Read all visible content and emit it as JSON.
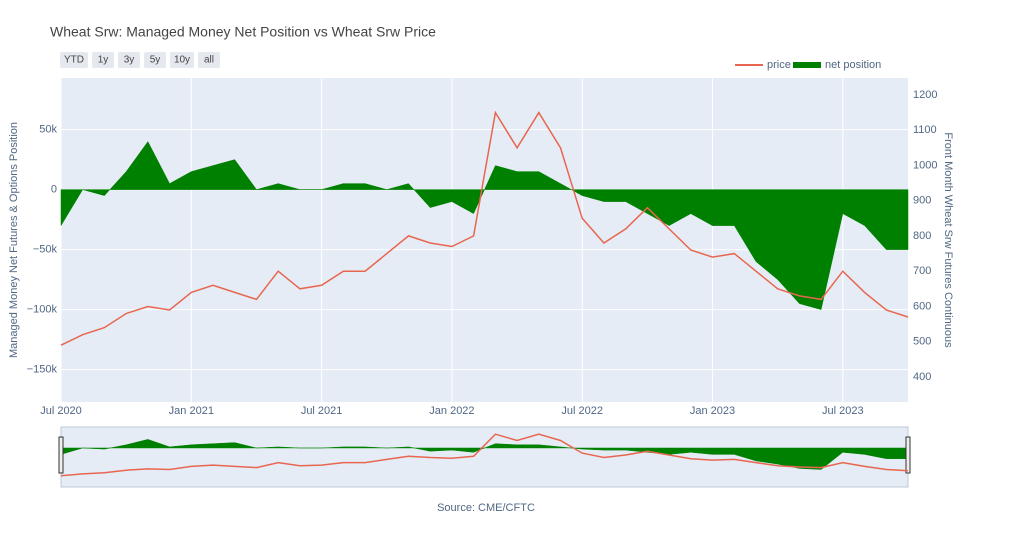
{
  "chart_data": {
    "type": "line-area",
    "title": "Wheat Srw: Managed Money Net Position vs Wheat Srw Price",
    "buttons": [
      "YTD",
      "1y",
      "3y",
      "5y",
      "10y",
      "all"
    ],
    "y_label": "Managed Money Net Futures & Options Position",
    "y2_label": "Front Month Wheat Srw Futures Continuous",
    "source": "Source: CME/CFTC",
    "legend": "top-right",
    "grid": true,
    "range_slider": true,
    "x": [
      "2020-07",
      "2020-08",
      "2020-09",
      "2020-10",
      "2020-11",
      "2020-12",
      "2021-01",
      "2021-02",
      "2021-03",
      "2021-04",
      "2021-05",
      "2021-06",
      "2021-07",
      "2021-08",
      "2021-09",
      "2021-10",
      "2021-11",
      "2021-12",
      "2022-01",
      "2022-02",
      "2022-03",
      "2022-04",
      "2022-05",
      "2022-06",
      "2022-07",
      "2022-08",
      "2022-09",
      "2022-10",
      "2022-11",
      "2022-12",
      "2023-01",
      "2023-02",
      "2023-03",
      "2023-04",
      "2023-05",
      "2023-06",
      "2023-07",
      "2023-08",
      "2023-09",
      "2023-10"
    ],
    "xlim": [
      "2020-07",
      "2023-10"
    ],
    "xticks": [
      {
        "value": "2020-07",
        "label": "Jul 2020"
      },
      {
        "value": "2021-01",
        "label": "Jan 2021"
      },
      {
        "value": "2021-07",
        "label": "Jul 2021"
      },
      {
        "value": "2022-01",
        "label": "Jan 2022"
      },
      {
        "value": "2022-07",
        "label": "Jul 2022"
      },
      {
        "value": "2023-01",
        "label": "Jan 2023"
      },
      {
        "value": "2023-07",
        "label": "Jul 2023"
      }
    ],
    "ylim": [
      -177000,
      93000
    ],
    "yticks": [
      {
        "value": -150000,
        "label": "−150k"
      },
      {
        "value": -100000,
        "label": "−100k"
      },
      {
        "value": -50000,
        "label": "−50k"
      },
      0,
      {
        "value": 50000,
        "label": "50k"
      }
    ],
    "y2lim": [
      329,
      1248
    ],
    "y2ticks": [
      400,
      500,
      600,
      700,
      800,
      900,
      1000,
      1100,
      1200
    ],
    "series": [
      {
        "name": "price",
        "color": "#e8664f",
        "axis": "y2",
        "kind": "line",
        "values": [
          490,
          520,
          540,
          580,
          600,
          590,
          640,
          660,
          640,
          620,
          700,
          650,
          660,
          700,
          700,
          750,
          800,
          780,
          770,
          800,
          1150,
          1050,
          1150,
          1050,
          850,
          780,
          820,
          880,
          820,
          760,
          740,
          750,
          700,
          650,
          630,
          620,
          700,
          640,
          590,
          570
        ]
      },
      {
        "name": "net position",
        "color": "#008000",
        "axis": "y",
        "kind": "area",
        "values": [
          -30000,
          0,
          -5000,
          15000,
          40000,
          5000,
          15000,
          20000,
          25000,
          0,
          5000,
          0,
          0,
          5000,
          5000,
          0,
          5000,
          -15000,
          -10000,
          -20000,
          20000,
          15000,
          15000,
          5000,
          -5000,
          -10000,
          -10000,
          -20000,
          -30000,
          -20000,
          -30000,
          -30000,
          -60000,
          -75000,
          -95000,
          -100000,
          -20000,
          -30000,
          -50000,
          -50000
        ]
      }
    ]
  }
}
